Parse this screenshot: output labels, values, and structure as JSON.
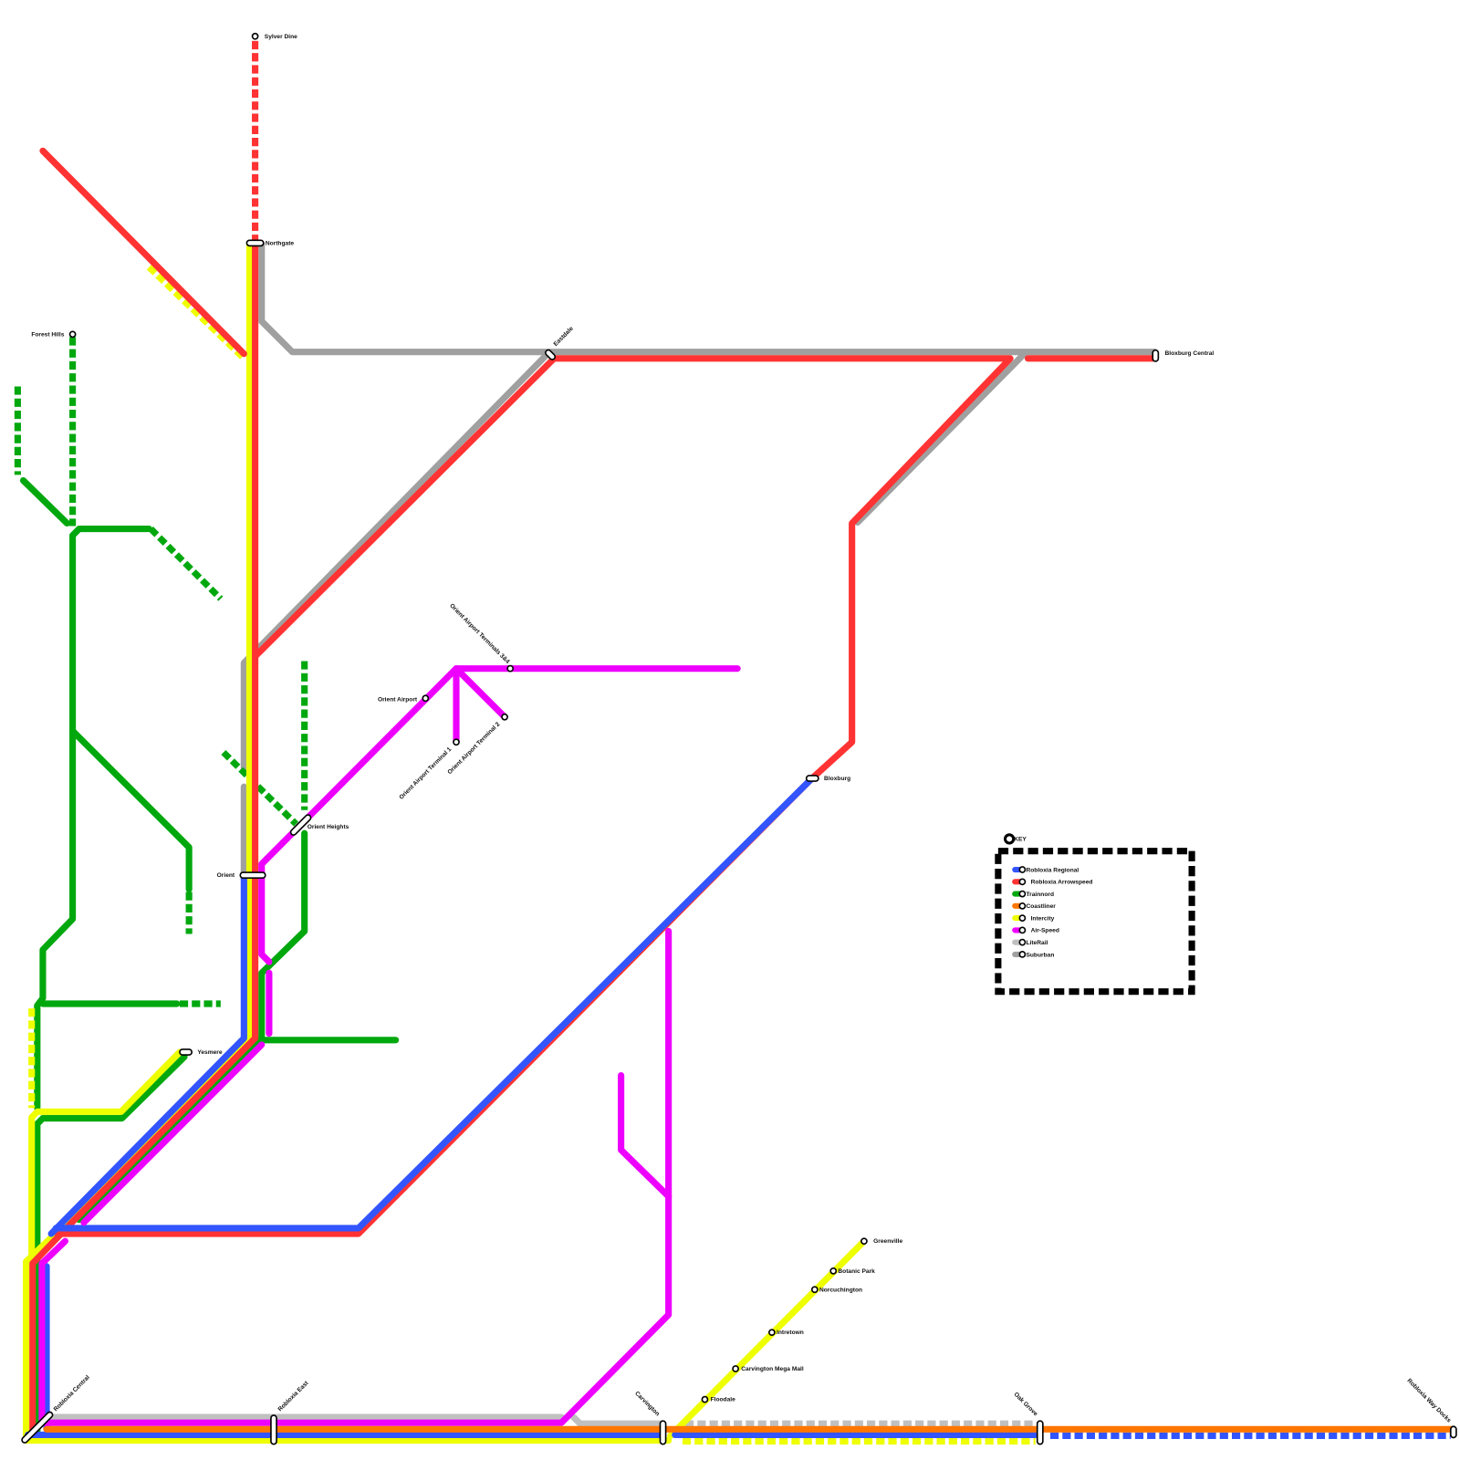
{
  "lines": {
    "regional": {
      "name": "Robloxia Regional",
      "color": "#3355ff"
    },
    "arrowspeed": {
      "name": "Robloxia Arrowspeed",
      "color": "#ff3333"
    },
    "trainnord": {
      "name": "Trainnord",
      "color": "#00a80e"
    },
    "coastliner": {
      "name": "Coastliner",
      "color": "#ff7700"
    },
    "intercity": {
      "name": "Intercity",
      "color": "#eeff00"
    },
    "airspeed": {
      "name": "Air-Speed",
      "color": "#ee00ff"
    },
    "literail": {
      "name": "LiteRail",
      "color": "#c0c0c0"
    },
    "suburban": {
      "name": "Suburban",
      "color": "#a0a0a0"
    }
  },
  "stations": {
    "sylver_dine": "Sylver Dine",
    "northgate": "Northgate",
    "forest_hills": "Forest Hills",
    "eastdale": "Eastdale",
    "bloxburg_central": "Bloxburg Central",
    "terminals_3_4": "Orient Airport Terminals 3&4",
    "orient_airport": "Orient Airport",
    "terminal_1": "Orient Airport Terminal 1",
    "terminal_2": "Orient Airport Terminal 2",
    "bloxburg": "Bloxburg",
    "orient_heights": "Orient Heights",
    "orient": "Orient",
    "yesmere": "Yesmere",
    "greenville": "Greenville",
    "botanic_park": "Botanic Park",
    "norcuchington": "Norcuchington",
    "intretown": "Intretown",
    "carvington_mega_mall": "Carvington Mega Mall",
    "floodale": "Floodale",
    "carvington": "Carvington",
    "oak_grove": "Oak Grove",
    "robloxia_way_docks": "Robloxia Way Docks",
    "robloxia_central": "Robloxia Central",
    "robloxia_east": "Robloxia East"
  },
  "key": {
    "title": "KEY",
    "items": [
      "Robloxia Regional",
      "Robloxia Arrowspeed",
      "Trainnord",
      "Coastliner",
      "Intercity",
      "Air-Speed",
      "LiteRail",
      "Suburban"
    ]
  }
}
